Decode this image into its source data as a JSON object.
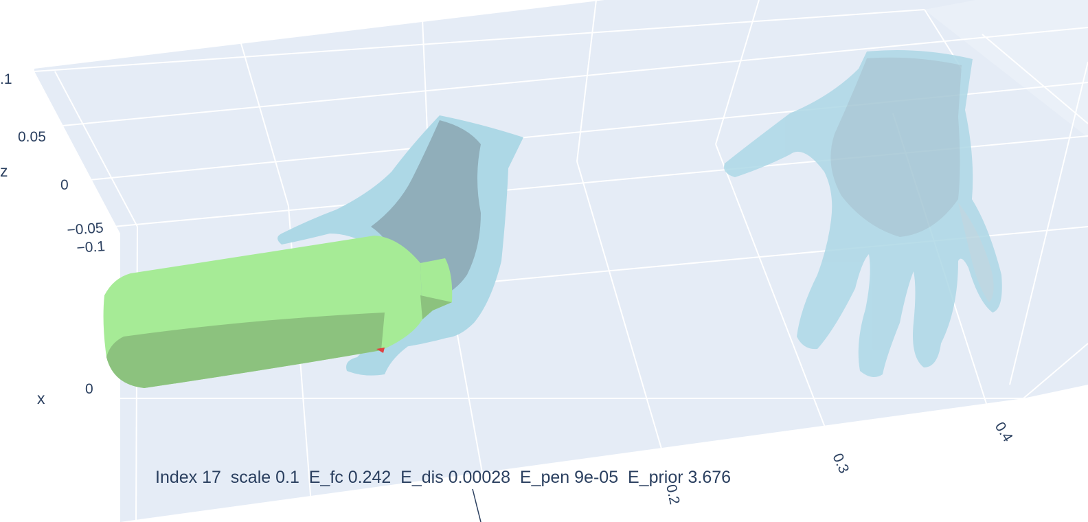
{
  "scene": {
    "background": "#e5ecf6",
    "grid_color": "#ffffff",
    "object_color": "#a6eb96",
    "hand_color": "#add8e6",
    "axes": {
      "z": {
        "title": "z",
        "ticks": [
          ".1",
          "0.05",
          "0",
          "−0.05",
          "−0.1"
        ]
      },
      "x": {
        "title": "x",
        "ticks": [
          "0"
        ]
      },
      "y": {
        "ticks": [
          "0.2",
          "0.3",
          "0.4"
        ]
      }
    },
    "objects": {
      "bottle": "bottle-object",
      "grasping_hand": "hand-mesh",
      "initial_hand": "hand-mesh"
    }
  },
  "status": {
    "text": "Index 17  scale 0.1  E_fc 0.242  E_dis 0.00028  E_pen 9e-05  E_prior 3.676"
  }
}
